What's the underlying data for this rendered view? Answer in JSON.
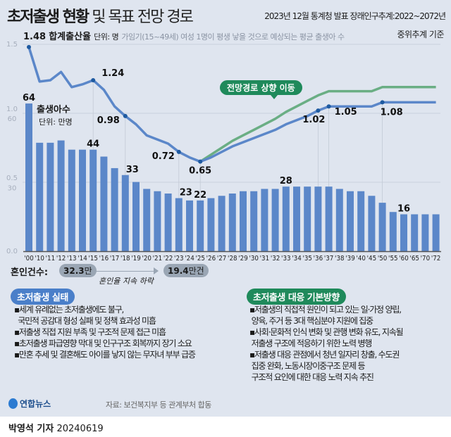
{
  "header": {
    "title_bold": "초저출생 현황",
    "title_light": "및 목표 전망 경로",
    "source_note": "2023년 12월 통계청 발표 장래인구추계:2022~2072년",
    "basis_note": "중위추계 기준"
  },
  "tfr_legend": {
    "label": "합계출산율",
    "unit": "단위: 명",
    "description": "가임기(15~49세) 여성 1명이 평생 낳을 것으로 예상되는 평균 출생아 수"
  },
  "births_legend": {
    "label": "출생아수",
    "unit": "단위: 만명"
  },
  "callout": "전망경로 상향 이동",
  "chart_data": {
    "type": "bar+line",
    "categories": [
      "'00",
      "'10",
      "'11",
      "'12",
      "'13",
      "'14",
      "'15",
      "'16",
      "'17",
      "'18",
      "'19",
      "'20",
      "'21",
      "'22",
      "'23",
      "'24",
      "'25",
      "'26",
      "'27",
      "'28",
      "'29",
      "'30",
      "'31",
      "'32",
      "'33",
      "'34",
      "'35",
      "'36",
      "'37",
      "'38",
      "'39",
      "'40",
      "'45",
      "'50",
      "'55",
      "'60",
      "'65",
      "'70",
      "'72"
    ],
    "left_axis_tfr_ticks": [
      "1.5",
      "1.0",
      "0.5",
      "0.0"
    ],
    "left_axis_births_ticks": [
      "60",
      "30"
    ],
    "tfr_ylim": [
      0,
      1.5
    ],
    "births_ylim": [
      0,
      60
    ],
    "series": [
      {
        "name": "출생아수",
        "type": "bar",
        "color": "#5b87c9",
        "values": [
          64,
          47,
          47,
          48,
          44,
          44,
          44,
          41,
          36,
          33,
          30,
          27,
          26,
          25,
          23,
          22,
          22,
          23,
          24,
          25,
          26,
          26,
          27,
          27,
          28,
          28,
          28,
          28,
          28,
          27,
          26,
          26,
          24,
          21,
          17,
          16,
          16,
          16,
          16
        ],
        "labeled_indices": [
          0,
          6,
          9,
          14,
          16,
          24,
          35
        ]
      },
      {
        "name": "합계출산율",
        "type": "line",
        "color": "#5b87c9",
        "values": [
          1.48,
          1.23,
          1.24,
          1.3,
          1.19,
          1.21,
          1.24,
          1.17,
          1.05,
          0.98,
          0.92,
          0.84,
          0.81,
          0.78,
          0.72,
          0.68,
          0.65,
          0.68,
          0.72,
          0.76,
          0.79,
          0.82,
          0.85,
          0.88,
          0.92,
          0.95,
          0.98,
          1.02,
          1.05,
          1.05,
          1.05,
          1.05,
          1.05,
          1.08,
          1.08,
          1.08,
          1.08,
          1.08,
          1.08
        ],
        "labeled_indices": [
          0,
          6,
          9,
          14,
          16,
          27,
          28,
          33
        ]
      },
      {
        "name": "전망경로 상향 이동",
        "type": "line",
        "color": "#6aae84",
        "start_index": 16,
        "values": [
          null,
          null,
          null,
          null,
          null,
          null,
          null,
          null,
          null,
          null,
          null,
          null,
          null,
          null,
          null,
          null,
          0.65,
          0.7,
          0.75,
          0.8,
          0.84,
          0.88,
          0.92,
          0.96,
          1.01,
          1.05,
          1.09,
          1.13,
          1.16,
          1.16,
          1.16,
          1.16,
          1.16,
          1.19,
          1.19,
          1.19,
          1.19,
          1.19,
          1.19
        ]
      }
    ],
    "grid": true
  },
  "marriage": {
    "label": "혼인건수:",
    "from_value": "32.3",
    "from_unit": "만",
    "to_value": "19.4",
    "to_unit": "만건",
    "trend": "혼인율 지속 하락"
  },
  "left_box": {
    "title": "초저출생 실태",
    "color": "#4a7fc9",
    "items": [
      "▪세계 유례없는 초저출생에도 불구,",
      "  국민적 공감대 형성 실패 및 정책 효과성 미흡",
      "▪저출생 직접 지원 부족 및 구조적 문제 접근 미흡",
      "▪초저출생 파급영향 막대 및 인구구조 회복까지 장기 소요",
      "▪만혼 추세 및 결혼해도 아이를 낳지 않는 무자녀 부부 급증"
    ]
  },
  "right_box": {
    "title": "초저출생 대응 기본방향",
    "color": "#1f8a5b",
    "items": [
      "▪저출생의 직접적 원인이 되고 있는 일·가정 양립,",
      " 양육, 주거 등 3대 핵심분야 지원에 집중",
      "▪사회·문화적 인식 변화 및 관행 변화 유도, 지속될",
      " 저출생 구조에 적응하기 위한 노력 병행",
      "▪저출생 대응 관점에서 청년 일자리 창출, 수도권",
      " 집중 완화, 노동시장이중구조 문제 등",
      " 구조적 요인에 대한 대응 노력 지속 추진"
    ]
  },
  "footer": {
    "logo": "연합뉴스",
    "source": "자료: 보건복지부 등 관계부처 합동",
    "byline": "박영석 기자",
    "date": "20240619"
  }
}
